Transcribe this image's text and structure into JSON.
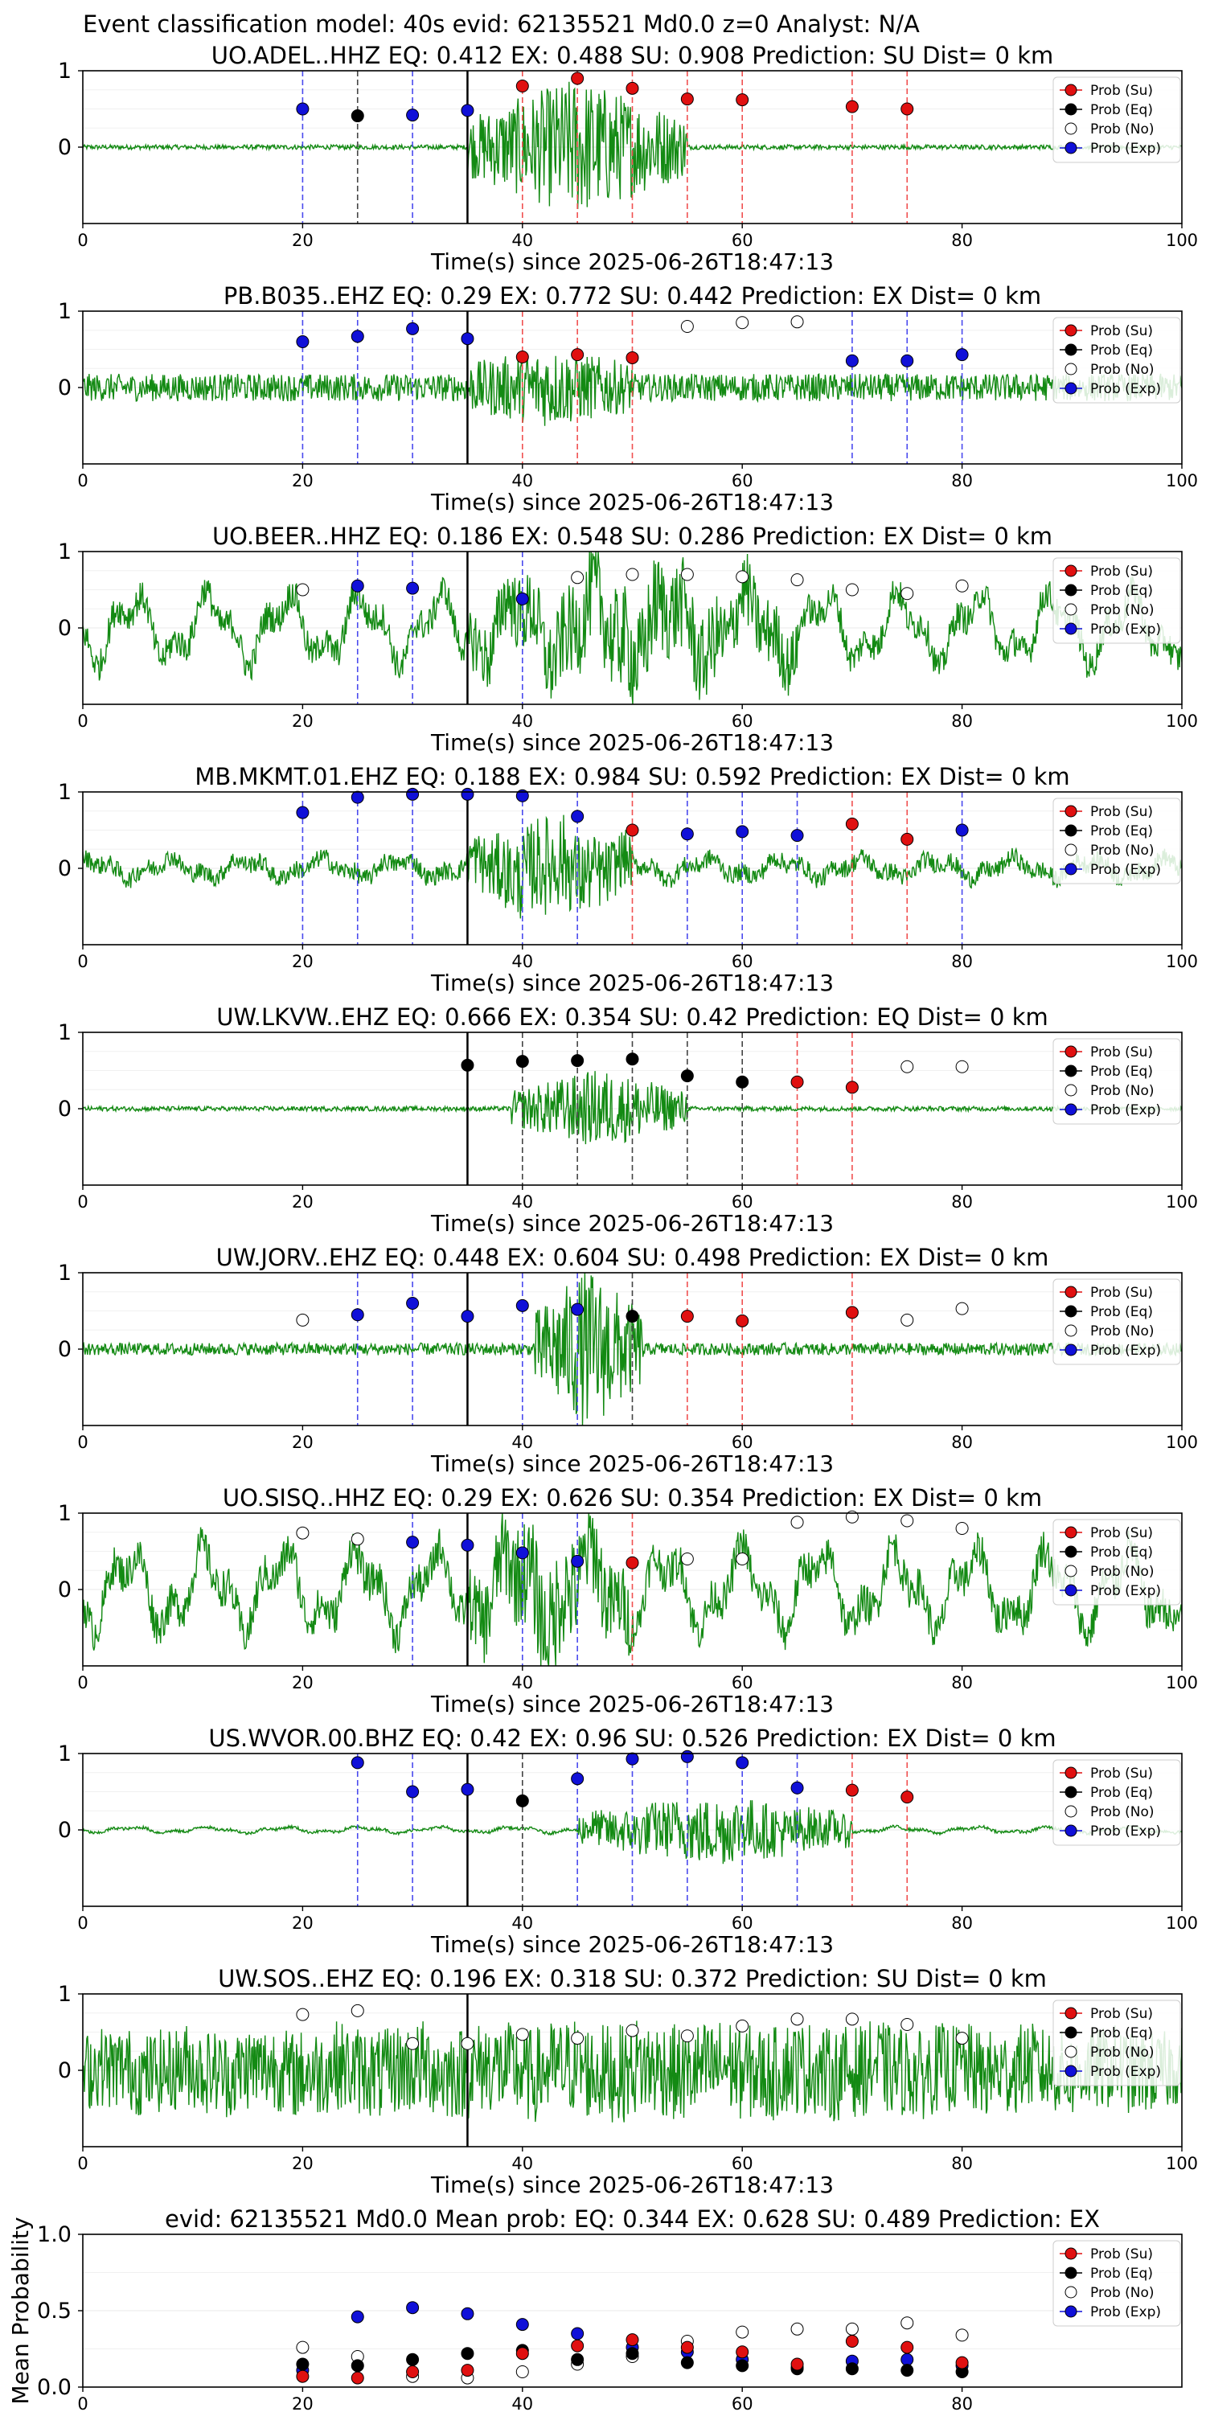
{
  "figure_title": "Event classification model: 40s evid: 62135521 Md0.0 z=0 Analyst: N/A",
  "legend_labels": [
    "Prob (Su)",
    "Prob (Eq)",
    "Prob (No)",
    "Prob (Exp)"
  ],
  "colors": {
    "su": "#e01010",
    "eq": "#000000",
    "no": "#ffffff",
    "exp": "#1010d8",
    "trace": "#138a13",
    "vline_su": "#f05050",
    "vline_eq": "#444444",
    "vline_exp": "#4a4aee"
  },
  "xlabel": "Time(s) since 2025-06-26T18:47:13",
  "chart_data": [
    {
      "type": "line",
      "title": "UO.ADEL..HHZ   EQ: 0.412  EX: 0.488  SU: 0.908   Prediction: SU    Dist= 0 km",
      "xlim": [
        0,
        100
      ],
      "ylim": [
        -1,
        1
      ],
      "yticks": [
        1,
        0
      ],
      "xticks": [
        0,
        20,
        40,
        60,
        80,
        100
      ],
      "onset": 35,
      "series": [
        {
          "name": "Prob (Exp)",
          "x": [
            20,
            30,
            35
          ],
          "y": [
            0.5,
            0.42,
            0.48
          ]
        },
        {
          "name": "Prob (Eq)",
          "x": [
            25
          ],
          "y": [
            0.41
          ]
        },
        {
          "name": "Prob (Su)",
          "x": [
            40,
            45,
            50,
            55,
            60,
            70,
            75
          ],
          "y": [
            0.8,
            0.9,
            0.77,
            0.63,
            0.62,
            0.53,
            0.5
          ]
        }
      ]
    },
    {
      "type": "line",
      "title": "PB.B035..EHZ  EQ: 0.29  EX: 0.772  SU: 0.442   Prediction: EX    Dist= 0 km",
      "xlim": [
        0,
        100
      ],
      "ylim": [
        -1,
        1
      ],
      "yticks": [
        1,
        0
      ],
      "xticks": [
        0,
        20,
        40,
        60,
        80,
        100
      ],
      "onset": 35,
      "series": [
        {
          "name": "Prob (Exp)",
          "x": [
            20,
            25,
            30,
            35,
            70,
            75,
            80
          ],
          "y": [
            0.6,
            0.67,
            0.77,
            0.64,
            0.35,
            0.35,
            0.43
          ]
        },
        {
          "name": "Prob (Su)",
          "x": [
            40,
            45,
            50
          ],
          "y": [
            0.4,
            0.43,
            0.39
          ]
        },
        {
          "name": "Prob (No)",
          "x": [
            55,
            60,
            65
          ],
          "y": [
            0.8,
            0.85,
            0.86
          ]
        }
      ]
    },
    {
      "type": "line",
      "title": "UO.BEER..HHZ   EQ: 0.186  EX: 0.548  SU: 0.286   Prediction: EX    Dist= 0 km",
      "xlim": [
        0,
        100
      ],
      "ylim": [
        -1,
        1
      ],
      "yticks": [
        1,
        0
      ],
      "xticks": [
        0,
        20,
        40,
        60,
        80,
        100
      ],
      "onset": 35,
      "series": [
        {
          "name": "Prob (No)",
          "x": [
            20,
            45,
            50,
            55,
            60,
            65,
            70,
            75,
            80
          ],
          "y": [
            0.5,
            0.66,
            0.7,
            0.7,
            0.67,
            0.63,
            0.5,
            0.45,
            0.55
          ]
        },
        {
          "name": "Prob (Exp)",
          "x": [
            25,
            30,
            40
          ],
          "y": [
            0.55,
            0.52,
            0.38
          ]
        }
      ]
    },
    {
      "type": "line",
      "title": "MB.MKMT.01.EHZ   EQ: 0.188  EX: 0.984  SU: 0.592   Prediction: EX    Dist= 0 km",
      "xlim": [
        0,
        100
      ],
      "ylim": [
        -1,
        1
      ],
      "yticks": [
        1,
        0
      ],
      "xticks": [
        0,
        20,
        40,
        60,
        80,
        100
      ],
      "onset": 35,
      "series": [
        {
          "name": "Prob (Exp)",
          "x": [
            20,
            25,
            30,
            35,
            40,
            45,
            55,
            60,
            65,
            80
          ],
          "y": [
            0.73,
            0.93,
            0.97,
            0.97,
            0.95,
            0.68,
            0.45,
            0.48,
            0.43,
            0.5
          ]
        },
        {
          "name": "Prob (Su)",
          "x": [
            50,
            70,
            75
          ],
          "y": [
            0.5,
            0.58,
            0.38
          ]
        }
      ]
    },
    {
      "type": "line",
      "title": "UW.LKVW..EHZ   EQ: 0.666  EX: 0.354  SU: 0.42   Prediction: EQ    Dist= 0 km",
      "xlim": [
        0,
        100
      ],
      "ylim": [
        -1,
        1
      ],
      "yticks": [
        1,
        0
      ],
      "xticks": [
        0,
        20,
        40,
        60,
        80,
        100
      ],
      "onset": 35,
      "series": [
        {
          "name": "Prob (Eq)",
          "x": [
            35,
            40,
            45,
            50,
            55,
            60
          ],
          "y": [
            0.57,
            0.62,
            0.63,
            0.65,
            0.43,
            0.35
          ]
        },
        {
          "name": "Prob (Su)",
          "x": [
            65,
            70
          ],
          "y": [
            0.35,
            0.28
          ]
        },
        {
          "name": "Prob (No)",
          "x": [
            75,
            80
          ],
          "y": [
            0.55,
            0.55
          ]
        }
      ]
    },
    {
      "type": "line",
      "title": "UW.JORV..EHZ   EQ: 0.448  EX: 0.604  SU: 0.498   Prediction: EX    Dist= 0 km",
      "xlim": [
        0,
        100
      ],
      "ylim": [
        -1,
        1
      ],
      "yticks": [
        1,
        0
      ],
      "xticks": [
        0,
        20,
        40,
        60,
        80,
        100
      ],
      "onset": 35,
      "series": [
        {
          "name": "Prob (No)",
          "x": [
            20,
            75,
            80
          ],
          "y": [
            0.38,
            0.38,
            0.53
          ]
        },
        {
          "name": "Prob (Exp)",
          "x": [
            25,
            30,
            35,
            40,
            45
          ],
          "y": [
            0.45,
            0.6,
            0.43,
            0.57,
            0.52
          ]
        },
        {
          "name": "Prob (Eq)",
          "x": [
            50
          ],
          "y": [
            0.43
          ]
        },
        {
          "name": "Prob (Su)",
          "x": [
            55,
            60,
            70
          ],
          "y": [
            0.43,
            0.37,
            0.48
          ]
        }
      ]
    },
    {
      "type": "line",
      "title": "UO.SISQ..HHZ   EQ: 0.29  EX: 0.626  SU: 0.354   Prediction: EX    Dist= 0 km",
      "xlim": [
        0,
        100
      ],
      "ylim": [
        -1,
        1
      ],
      "yticks": [
        1,
        0
      ],
      "xticks": [
        0,
        20,
        40,
        60,
        80,
        100
      ],
      "onset": 35,
      "series": [
        {
          "name": "Prob (No)",
          "x": [
            20,
            25,
            55,
            60,
            65,
            70,
            75,
            80
          ],
          "y": [
            0.74,
            0.66,
            0.4,
            0.4,
            0.88,
            0.95,
            0.9,
            0.8
          ]
        },
        {
          "name": "Prob (Exp)",
          "x": [
            30,
            35,
            40,
            45
          ],
          "y": [
            0.62,
            0.58,
            0.48,
            0.37
          ]
        },
        {
          "name": "Prob (Su)",
          "x": [
            50
          ],
          "y": [
            0.35
          ]
        }
      ]
    },
    {
      "type": "line",
      "title": "US.WVOR.00.BHZ   EQ: 0.42  EX: 0.96  SU: 0.526   Prediction: EX    Dist= 0 km",
      "xlim": [
        0,
        100
      ],
      "ylim": [
        -1,
        1
      ],
      "yticks": [
        1,
        0
      ],
      "xticks": [
        0,
        20,
        40,
        60,
        80,
        100
      ],
      "onset": 35,
      "series": [
        {
          "name": "Prob (Exp)",
          "x": [
            25,
            30,
            35,
            45,
            50,
            55,
            60,
            65
          ],
          "y": [
            0.88,
            0.5,
            0.53,
            0.67,
            0.93,
            0.96,
            0.88,
            0.55
          ]
        },
        {
          "name": "Prob (Eq)",
          "x": [
            40
          ],
          "y": [
            0.38
          ]
        },
        {
          "name": "Prob (Su)",
          "x": [
            70,
            75
          ],
          "y": [
            0.52,
            0.43
          ]
        }
      ]
    },
    {
      "type": "line",
      "title": "UW.SOS..EHZ   EQ: 0.196  EX: 0.318  SU: 0.372   Prediction: SU    Dist= 0 km",
      "xlim": [
        0,
        100
      ],
      "ylim": [
        -1,
        1
      ],
      "yticks": [
        1,
        0
      ],
      "xticks": [
        0,
        20,
        40,
        60,
        80,
        100
      ],
      "onset": 35,
      "series": [
        {
          "name": "Prob (No)",
          "x": [
            20,
            25,
            30,
            35,
            40,
            45,
            50,
            55,
            60,
            65,
            70,
            75,
            80
          ],
          "y": [
            0.73,
            0.78,
            0.35,
            0.35,
            0.47,
            0.42,
            0.52,
            0.45,
            0.58,
            0.67,
            0.67,
            0.6,
            0.42
          ]
        }
      ]
    },
    {
      "type": "scatter",
      "title": "evid: 62135521  Md0.0    Mean prob:    EQ: 0.344  EX: 0.628  SU: 0.489   Prediction: EX",
      "ylabel": "Mean Probability",
      "xlim": [
        0,
        100
      ],
      "ylim": [
        0,
        1
      ],
      "yticks": [
        1.0,
        0.5,
        0.0
      ],
      "xticks": [
        0,
        20,
        40,
        60,
        80
      ],
      "series": [
        {
          "name": "Prob (Exp)",
          "x": [
            20,
            25,
            30,
            35,
            40,
            45,
            50,
            55,
            60,
            65,
            70,
            75,
            80
          ],
          "y": [
            0.11,
            0.46,
            0.52,
            0.48,
            0.41,
            0.35,
            0.26,
            0.23,
            0.18,
            0.13,
            0.17,
            0.18,
            0.14
          ]
        },
        {
          "name": "Prob (No)",
          "x": [
            20,
            25,
            30,
            35,
            40,
            45,
            50,
            55,
            60,
            65,
            70,
            75,
            80
          ],
          "y": [
            0.26,
            0.2,
            0.07,
            0.06,
            0.1,
            0.15,
            0.2,
            0.3,
            0.36,
            0.38,
            0.38,
            0.42,
            0.34
          ]
        },
        {
          "name": "Prob (Eq)",
          "x": [
            20,
            25,
            30,
            35,
            40,
            45,
            50,
            55,
            60,
            65,
            70,
            75,
            80
          ],
          "y": [
            0.15,
            0.14,
            0.18,
            0.22,
            0.24,
            0.18,
            0.22,
            0.16,
            0.14,
            0.12,
            0.12,
            0.11,
            0.1
          ]
        },
        {
          "name": "Prob (Su)",
          "x": [
            20,
            25,
            30,
            35,
            40,
            45,
            50,
            55,
            60,
            65,
            70,
            75,
            80
          ],
          "y": [
            0.07,
            0.06,
            0.1,
            0.11,
            0.22,
            0.27,
            0.31,
            0.26,
            0.23,
            0.15,
            0.3,
            0.26,
            0.16
          ]
        }
      ]
    }
  ]
}
